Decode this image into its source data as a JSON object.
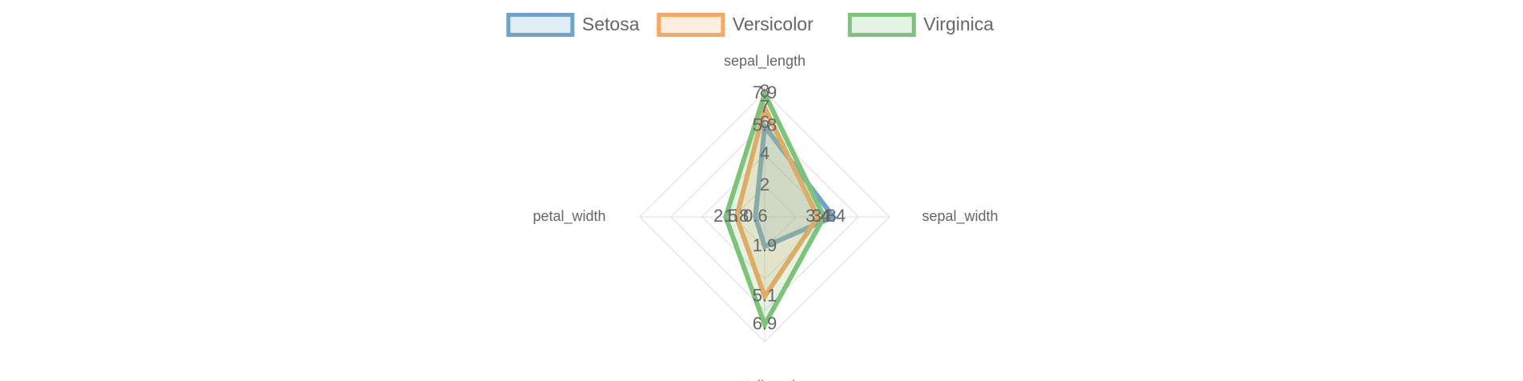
{
  "chart_data": {
    "type": "radar",
    "categories": [
      "sepal_length",
      "sepal_width",
      "petallength",
      "petal_width"
    ],
    "series": [
      {
        "name": "Setosa",
        "color": "#6ea4cc",
        "values": [
          5.8,
          4.4,
          1.9,
          0.6
        ]
      },
      {
        "name": "Versicolor",
        "color": "#f6a864",
        "values": [
          7,
          3.4,
          5.1,
          1.8
        ]
      },
      {
        "name": "Virginica",
        "color": "#7dc47a",
        "values": [
          7.9,
          3.8,
          6.9,
          2.5
        ]
      }
    ],
    "ylim": [
      0,
      8
    ],
    "yticks": [
      2,
      4,
      6,
      8
    ],
    "grid": true,
    "legend": "top"
  }
}
